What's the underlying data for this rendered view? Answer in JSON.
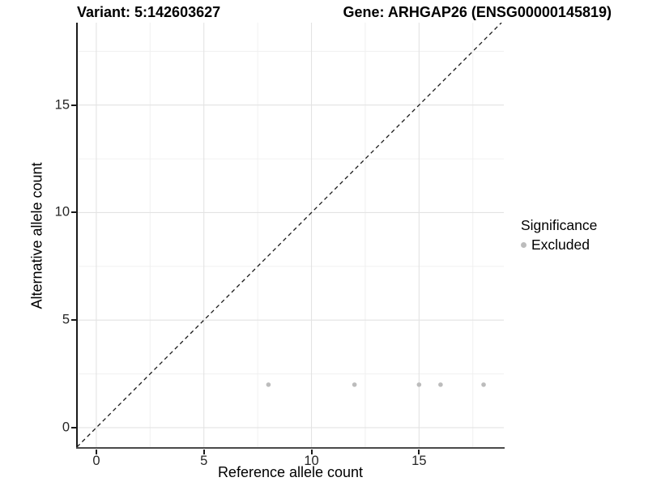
{
  "titles": {
    "left": "Variant: 5:142603627",
    "right": "Gene: ARHGAP26 (ENSG00000145819)"
  },
  "chart_data": {
    "type": "scatter",
    "xlabel": "Reference allele count",
    "ylabel": "Alternative allele count",
    "xlim": [
      -0.9,
      18.94
    ],
    "ylim": [
      -0.98,
      18.83
    ],
    "x_major_ticks": [
      0,
      5,
      10,
      15
    ],
    "y_major_ticks": [
      0,
      5,
      10,
      15
    ],
    "x_minor_gridlines": [
      2.5,
      7.5,
      12.5,
      17.5
    ],
    "y_minor_gridlines": [
      2.5,
      7.5,
      12.5,
      17.5
    ],
    "grid": {
      "major_color": "#e3e3e3",
      "minor_color": "#f0f0f0",
      "panel_background": "#ffffff"
    },
    "identity_line": {
      "slope": 1,
      "intercept": 0,
      "linetype": "dashed",
      "color": "#1a1a1a"
    },
    "series": [
      {
        "name": "Excluded",
        "color": "#bcbcbc",
        "points": [
          {
            "x": 8,
            "y": 2
          },
          {
            "x": 12,
            "y": 2
          },
          {
            "x": 15,
            "y": 2
          },
          {
            "x": 16,
            "y": 2
          },
          {
            "x": 18,
            "y": 2
          }
        ]
      }
    ],
    "legend": {
      "title": "Significance",
      "position": "right",
      "items": [
        {
          "label": "Excluded",
          "color": "#bcbcbc"
        }
      ]
    }
  }
}
